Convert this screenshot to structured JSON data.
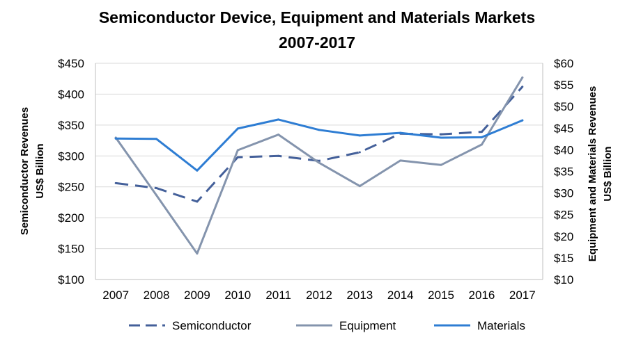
{
  "chart_data": {
    "type": "line",
    "title": [
      "Semiconductor Device, Equipment and Materials Markets",
      "2007-2017"
    ],
    "categories": [
      "2007",
      "2008",
      "2009",
      "2010",
      "2011",
      "2012",
      "2013",
      "2014",
      "2015",
      "2016",
      "2017"
    ],
    "ylabel_left": [
      "Semiconductor Revenues",
      "US$ Billion"
    ],
    "ylabel_right": [
      "Equipment and Materials Revenues",
      "US$ Billion"
    ],
    "y_left": {
      "min": 100,
      "max": 450,
      "step": 50,
      "ticks": [
        "$100",
        "$150",
        "$200",
        "$250",
        "$300",
        "$350",
        "$400",
        "$450"
      ]
    },
    "y_right": {
      "min": 10,
      "max": 60,
      "step": 5,
      "ticks": [
        "$10",
        "$15",
        "$20",
        "$25",
        "$30",
        "$35",
        "$40",
        "$45",
        "$50",
        "$55",
        "$60"
      ]
    },
    "grid": "horizontal",
    "legend_position": "bottom",
    "series": [
      {
        "name": "Semiconductor",
        "axis": "left",
        "style": "dashed",
        "color": "#44609a",
        "values": [
          256,
          248,
          226,
          298,
          300,
          292,
          306,
          336,
          335,
          339,
          412
        ]
      },
      {
        "name": "Equipment",
        "axis": "right",
        "style": "solid",
        "color": "#8494ad",
        "values": [
          42.8,
          29.5,
          16.0,
          39.9,
          43.5,
          37.0,
          31.6,
          37.5,
          36.5,
          41.2,
          56.7
        ]
      },
      {
        "name": "Materials",
        "axis": "right",
        "style": "solid",
        "color": "#2e7dd3",
        "values": [
          42.6,
          42.5,
          35.2,
          44.9,
          47.0,
          44.6,
          43.3,
          43.9,
          42.8,
          42.9,
          46.8
        ]
      }
    ]
  }
}
